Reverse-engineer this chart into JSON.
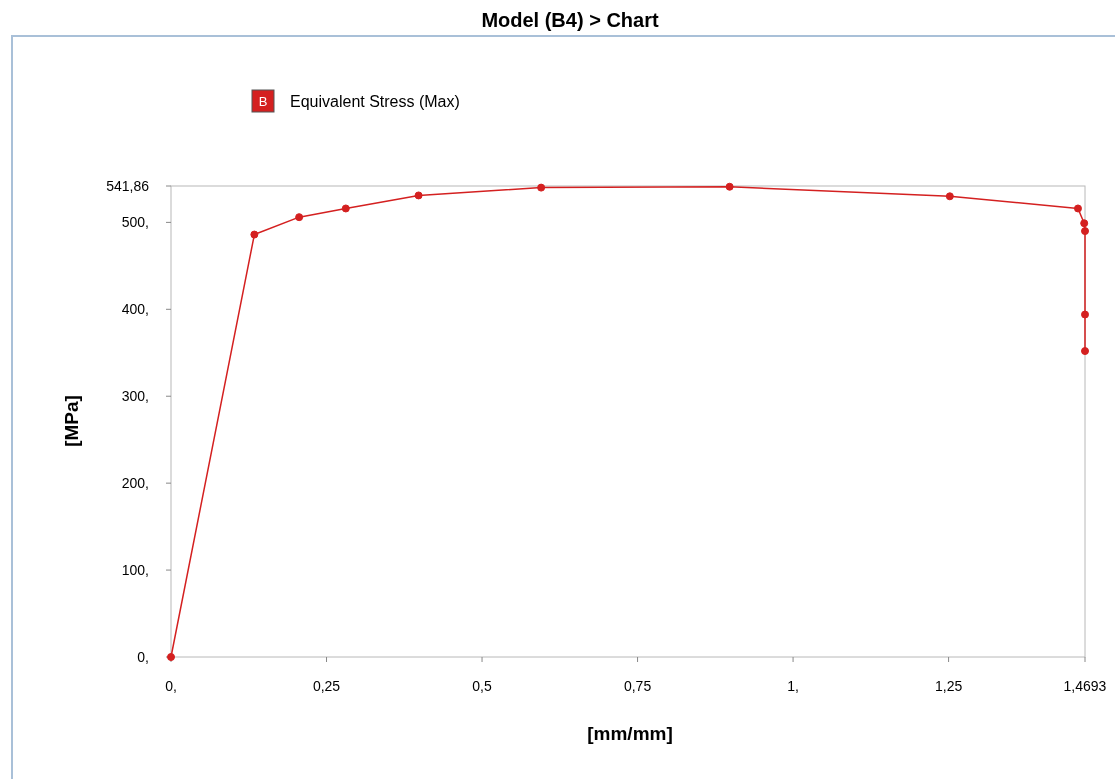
{
  "chart_data": {
    "type": "line",
    "title": "Model (B4) > Chart",
    "xlabel": "[mm/mm]",
    "ylabel": "[MPa]",
    "annotations": [
      "B"
    ],
    "x": [
      0,
      0.134,
      0.206,
      0.281,
      0.398,
      0.595,
      0.898,
      1.252,
      1.458,
      1.468,
      1.4693,
      1.4693,
      1.4693
    ],
    "series": [
      {
        "name": "Equivalent Stress (Max)",
        "color": "#d42020",
        "values": [
          0,
          486,
          506,
          516,
          531,
          540,
          541,
          530,
          516,
          499,
          490,
          394,
          352
        ]
      }
    ],
    "xlim": [
      0,
      1.4693
    ],
    "ylim": [
      0,
      541.86
    ],
    "xticks": [
      {
        "value": 0,
        "label": "0,"
      },
      {
        "value": 0.25,
        "label": "0,25"
      },
      {
        "value": 0.5,
        "label": "0,5"
      },
      {
        "value": 0.75,
        "label": "0,75"
      },
      {
        "value": 1,
        "label": "1,"
      },
      {
        "value": 1.25,
        "label": "1,25"
      },
      {
        "value": 1.4693,
        "label": "1,4693"
      }
    ],
    "yticks": [
      {
        "value": 0,
        "label": "0,"
      },
      {
        "value": 100,
        "label": "100,"
      },
      {
        "value": 200,
        "label": "200,"
      },
      {
        "value": 300,
        "label": "300,"
      },
      {
        "value": 400,
        "label": "400,"
      },
      {
        "value": 500,
        "label": "500,"
      },
      {
        "value": 541.86,
        "label": "541,86"
      }
    ],
    "grid": false,
    "legend": "top left",
    "marker": "circle",
    "line_style": "solid"
  }
}
